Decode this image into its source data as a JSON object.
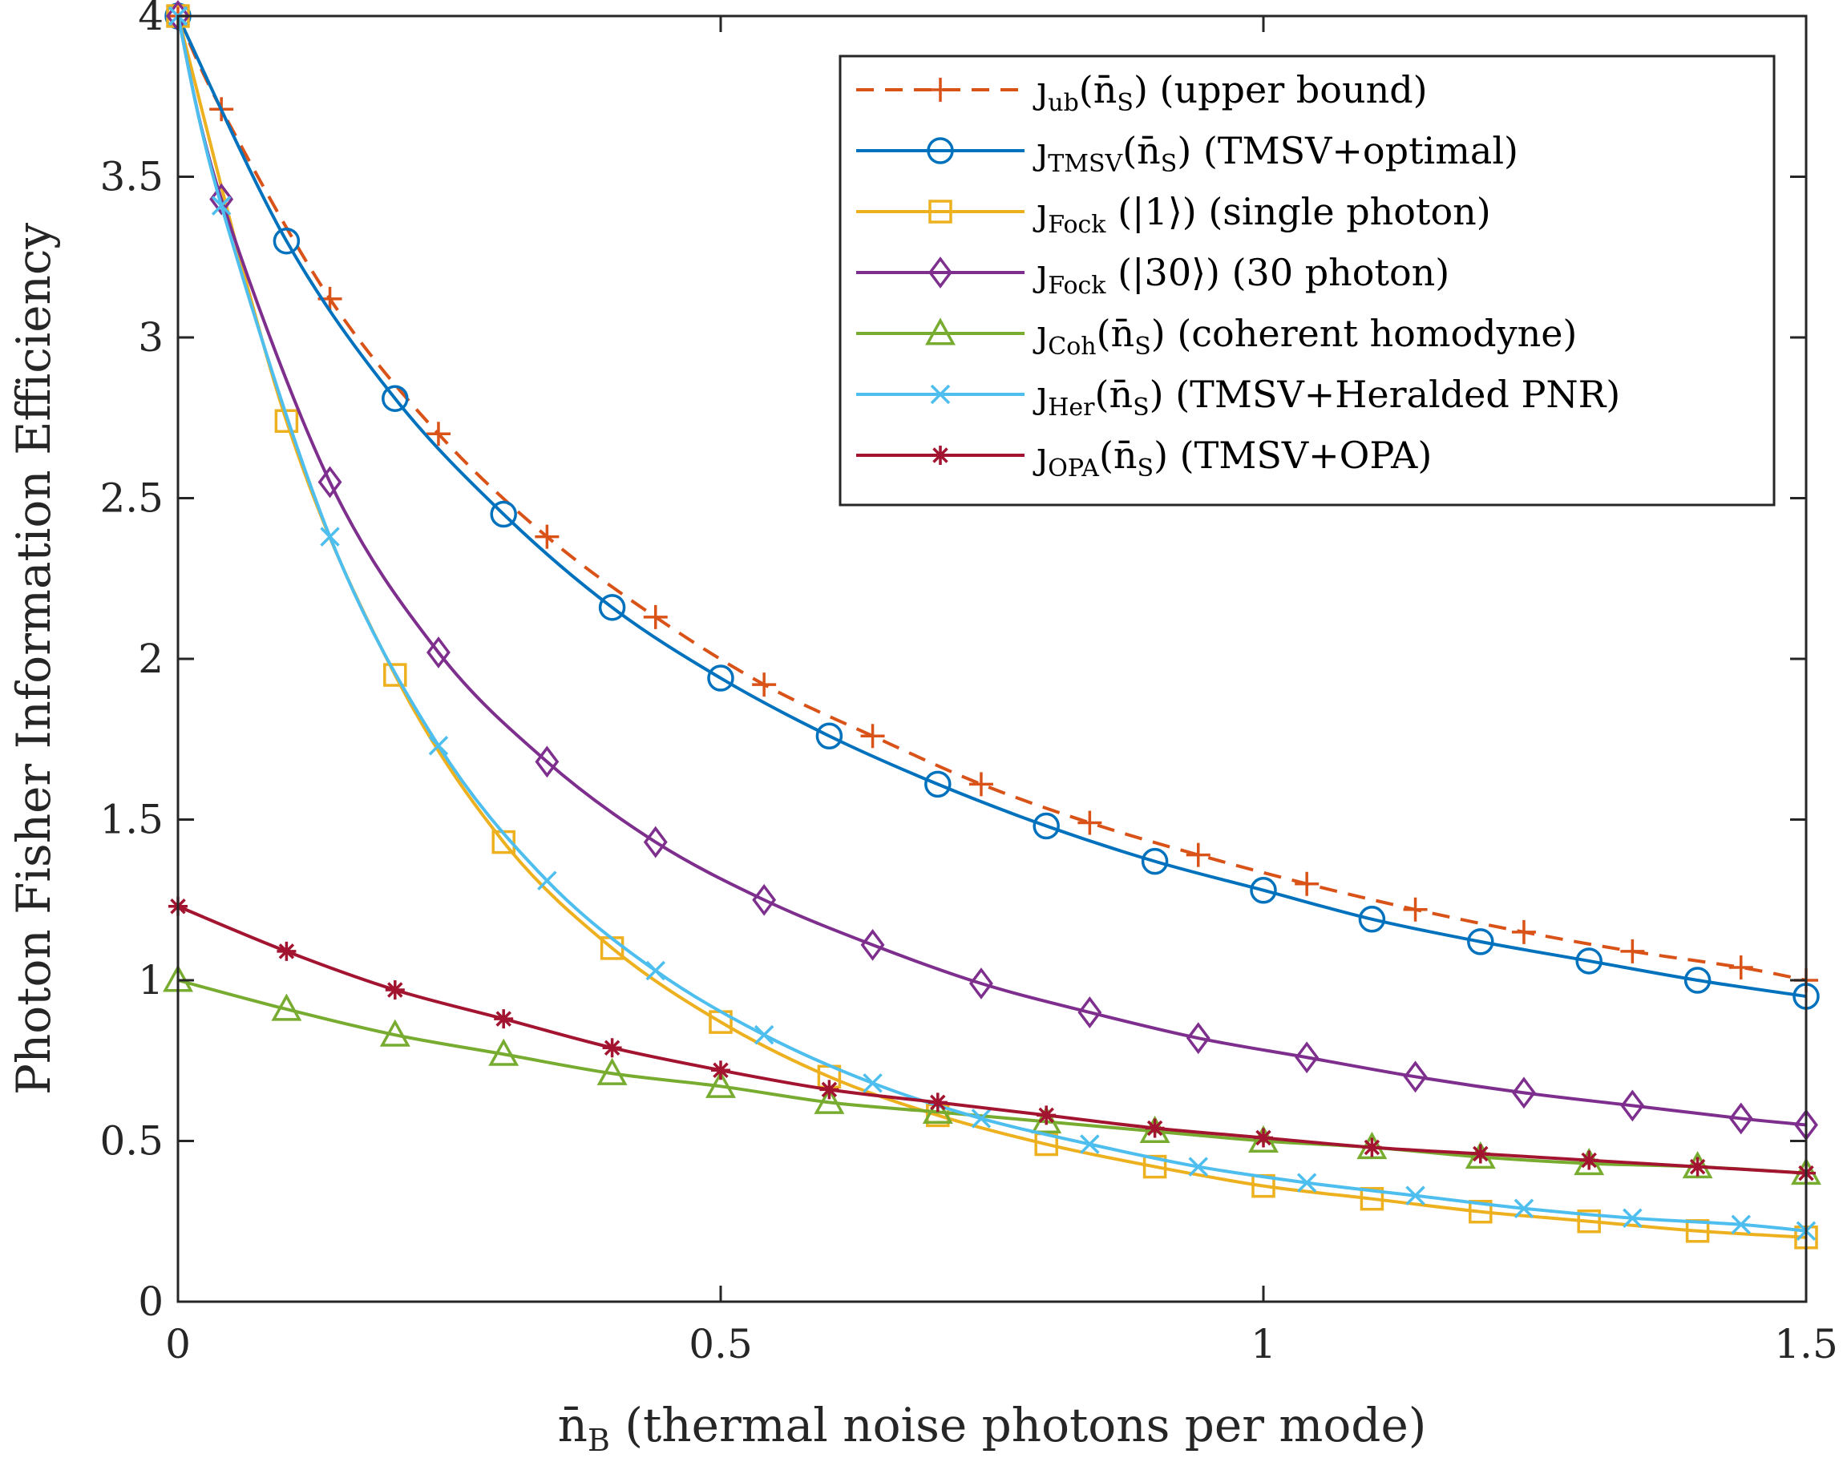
{
  "chart_data": {
    "type": "line",
    "title": "",
    "xlabel": "n̄B (thermal noise photons per mode)",
    "xlabel_parts": {
      "var": "n̄",
      "sub": "B",
      "rest": " (thermal noise photons per mode)"
    },
    "ylabel": "Photon Fisher Information Efficiency",
    "xlim": [
      0,
      1.5
    ],
    "ylim": [
      0,
      4
    ],
    "xticks": [
      0,
      0.5,
      1,
      1.5
    ],
    "xtick_labels": [
      "0",
      "0.5",
      "1",
      "1.5"
    ],
    "yticks": [
      0,
      0.5,
      1,
      1.5,
      2,
      2.5,
      3,
      3.5,
      4
    ],
    "ytick_labels": [
      "0",
      "0.5",
      "1",
      "1.5",
      "2",
      "2.5",
      "3",
      "3.5",
      "4"
    ],
    "grid": false,
    "legend_position": "top-right",
    "series": [
      {
        "name": "ȷub(n̄S) (upper bound)",
        "legend_main": "ȷ",
        "legend_sub": "ub",
        "legend_rest": "(n̄",
        "legend_sub2": "S",
        "legend_tail": ") (upper bound)",
        "color": "#D95319",
        "dash": true,
        "marker": "plus",
        "x": [
          0,
          0.04,
          0.14,
          0.24,
          0.34,
          0.44,
          0.54,
          0.64,
          0.74,
          0.84,
          0.94,
          1.04,
          1.14,
          1.24,
          1.34,
          1.44,
          1.5
        ],
        "y": [
          4.0,
          3.71,
          3.12,
          2.7,
          2.38,
          2.13,
          1.92,
          1.76,
          1.61,
          1.49,
          1.39,
          1.3,
          1.22,
          1.15,
          1.09,
          1.04,
          1.0
        ]
      },
      {
        "name": "ȷTMSV(n̄S) (TMSV+optimal)",
        "legend_main": "ȷ",
        "legend_sub": "TMSV",
        "legend_rest": "(n̄",
        "legend_sub2": "S",
        "legend_tail": ") (TMSV+optimal)",
        "color": "#0072BD",
        "dash": false,
        "marker": "circle",
        "x": [
          0,
          0.1,
          0.2,
          0.3,
          0.4,
          0.5,
          0.6,
          0.7,
          0.8,
          0.9,
          1.0,
          1.1,
          1.2,
          1.3,
          1.4,
          1.5
        ],
        "y": [
          4.0,
          3.3,
          2.81,
          2.45,
          2.16,
          1.94,
          1.76,
          1.61,
          1.48,
          1.37,
          1.28,
          1.19,
          1.12,
          1.06,
          1.0,
          0.95
        ]
      },
      {
        "name": "ȷFock (|1⟩) (single photon)",
        "legend_main": "ȷ",
        "legend_sub": "Fock",
        "legend_rest": " (|1⟩",
        "legend_sub2": "",
        "legend_tail": ") (single photon)",
        "color": "#EDB120",
        "dash": false,
        "marker": "square",
        "x": [
          0,
          0.1,
          0.2,
          0.3,
          0.4,
          0.5,
          0.6,
          0.7,
          0.8,
          0.9,
          1.0,
          1.1,
          1.2,
          1.3,
          1.4,
          1.5
        ],
        "y": [
          4.0,
          2.74,
          1.95,
          1.43,
          1.1,
          0.87,
          0.7,
          0.58,
          0.49,
          0.42,
          0.36,
          0.32,
          0.28,
          0.25,
          0.22,
          0.2
        ]
      },
      {
        "name": "ȷFock (|30⟩) (30 photon)",
        "legend_main": "ȷ",
        "legend_sub": "Fock",
        "legend_rest": " (|30⟩",
        "legend_sub2": "",
        "legend_tail": ") (30 photon)",
        "color": "#7E2F8E",
        "dash": false,
        "marker": "diamond",
        "x": [
          0,
          0.04,
          0.14,
          0.24,
          0.34,
          0.44,
          0.54,
          0.64,
          0.74,
          0.84,
          0.94,
          1.04,
          1.14,
          1.24,
          1.34,
          1.44,
          1.5
        ],
        "y": [
          4.0,
          3.43,
          2.55,
          2.02,
          1.68,
          1.43,
          1.25,
          1.11,
          0.99,
          0.9,
          0.82,
          0.76,
          0.7,
          0.65,
          0.61,
          0.57,
          0.55
        ]
      },
      {
        "name": "ȷCoh(n̄S) (coherent homodyne)",
        "legend_main": "ȷ",
        "legend_sub": "Coh",
        "legend_rest": "(n̄",
        "legend_sub2": "S",
        "legend_tail": ") (coherent homodyne)",
        "color": "#77AC30",
        "dash": false,
        "marker": "triangle",
        "x": [
          0,
          0.1,
          0.2,
          0.3,
          0.4,
          0.5,
          0.6,
          0.7,
          0.8,
          0.9,
          1.0,
          1.1,
          1.2,
          1.3,
          1.4,
          1.5
        ],
        "y": [
          1.0,
          0.91,
          0.83,
          0.77,
          0.71,
          0.67,
          0.62,
          0.59,
          0.56,
          0.53,
          0.5,
          0.48,
          0.45,
          0.43,
          0.42,
          0.4
        ]
      },
      {
        "name": "ȷHer(n̄S) (TMSV+Heralded PNR)",
        "legend_main": "ȷ",
        "legend_sub": "Her",
        "legend_rest": "(n̄",
        "legend_sub2": "S",
        "legend_tail": ") (TMSV+Heralded PNR)",
        "color": "#4DBEEE",
        "dash": false,
        "marker": "x",
        "x": [
          0,
          0.04,
          0.14,
          0.24,
          0.34,
          0.44,
          0.54,
          0.64,
          0.74,
          0.84,
          0.94,
          1.04,
          1.14,
          1.24,
          1.34,
          1.44,
          1.5
        ],
        "y": [
          4.0,
          3.41,
          2.38,
          1.73,
          1.31,
          1.03,
          0.83,
          0.68,
          0.57,
          0.49,
          0.42,
          0.37,
          0.33,
          0.29,
          0.26,
          0.24,
          0.22
        ]
      },
      {
        "name": "ȷOPA(n̄S) (TMSV+OPA)",
        "legend_main": "ȷ",
        "legend_sub": "OPA",
        "legend_rest": "(n̄",
        "legend_sub2": "S",
        "legend_tail": ") (TMSV+OPA)",
        "color": "#A2142F",
        "dash": false,
        "marker": "asterisk",
        "x": [
          0,
          0.1,
          0.2,
          0.3,
          0.4,
          0.5,
          0.6,
          0.7,
          0.8,
          0.9,
          1.0,
          1.1,
          1.2,
          1.3,
          1.4,
          1.5
        ],
        "y": [
          1.23,
          1.09,
          0.97,
          0.88,
          0.79,
          0.72,
          0.66,
          0.62,
          0.58,
          0.54,
          0.51,
          0.48,
          0.46,
          0.44,
          0.42,
          0.4
        ]
      }
    ]
  }
}
